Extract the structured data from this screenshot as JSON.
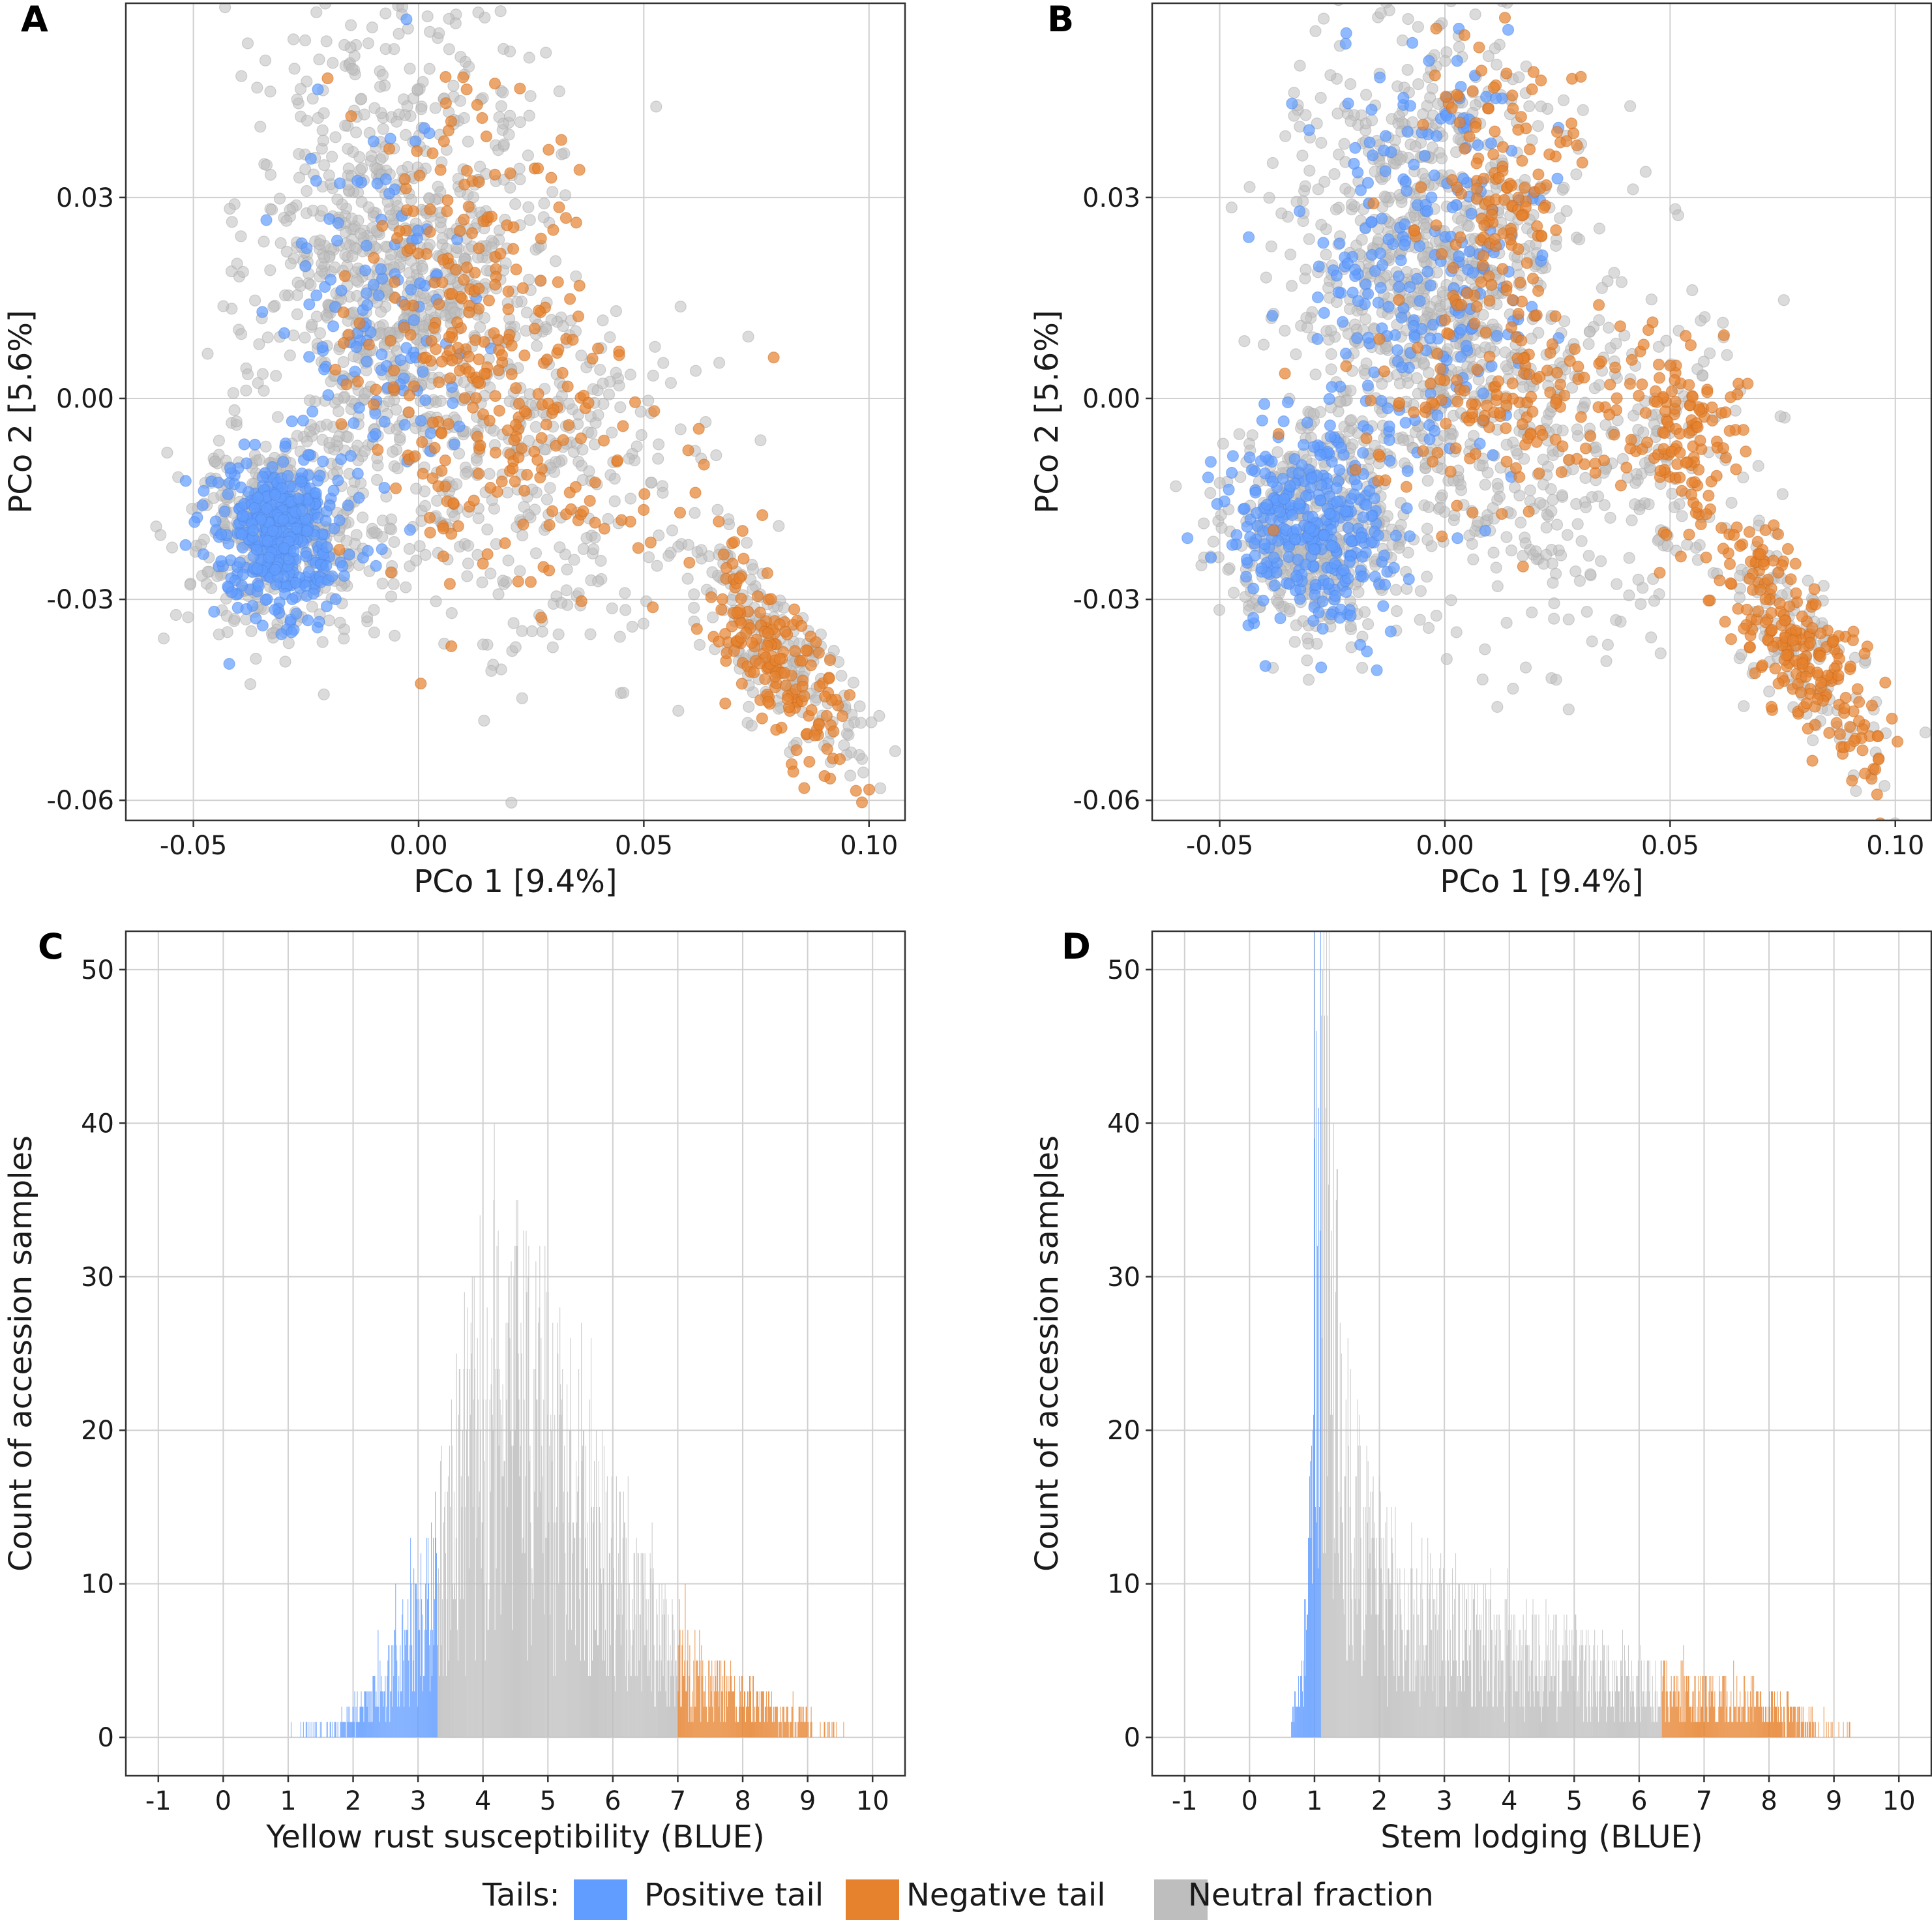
{
  "colors": {
    "positive": "#619CFF",
    "negative": "#E6822E",
    "neutral": "#BEBEBE"
  },
  "legend": {
    "title": "Tails:",
    "items": [
      "Positive tail",
      "Negative tail",
      "Neutral fraction"
    ]
  },
  "chart_data": [
    {
      "panel": "A",
      "type": "scatter",
      "xlabel": "PCo 1 [9.4%]",
      "ylabel": "PCo 2 [5.6%]",
      "xlim": [
        -0.065,
        0.108
      ],
      "ylim": [
        -0.063,
        0.059
      ],
      "xticks": [
        -0.05,
        0.0,
        0.05,
        0.1
      ],
      "xtick_labels": [
        "-0.05",
        "0.00",
        "0.05",
        "0.10"
      ],
      "yticks": [
        -0.06,
        -0.03,
        0.0,
        0.03
      ],
      "ytick_labels": [
        "-0.06",
        "-0.03",
        "0.00",
        "0.03"
      ],
      "clusters": [
        {
          "series": "neutral",
          "n": 900,
          "cx": -0.004,
          "cy": 0.02,
          "sx": 0.016,
          "sy": 0.019
        },
        {
          "series": "neutral",
          "n": 420,
          "cx": -0.03,
          "cy": -0.02,
          "sx": 0.01,
          "sy": 0.008
        },
        {
          "series": "neutral",
          "n": 320,
          "cx": 0.026,
          "cy": -0.01,
          "sx": 0.02,
          "sy": 0.014
        },
        {
          "series": "neutral",
          "n": 200,
          "cx": 0.079,
          "cy": -0.037,
          "sx": 0.011,
          "sy": 0.006,
          "slope": -0.75
        },
        {
          "series": "positive",
          "n": 400,
          "cx": -0.031,
          "cy": -0.021,
          "sx": 0.007,
          "sy": 0.006
        },
        {
          "series": "positive",
          "n": 130,
          "cx": -0.009,
          "cy": 0.01,
          "sx": 0.01,
          "sy": 0.015
        },
        {
          "series": "negative",
          "n": 190,
          "cx": 0.012,
          "cy": 0.015,
          "sx": 0.012,
          "sy": 0.016
        },
        {
          "series": "negative",
          "n": 130,
          "cx": 0.024,
          "cy": -0.01,
          "sx": 0.018,
          "sy": 0.012
        },
        {
          "series": "negative",
          "n": 170,
          "cx": 0.079,
          "cy": -0.039,
          "sx": 0.009,
          "sy": 0.006,
          "slope": -0.75
        }
      ]
    },
    {
      "panel": "B",
      "type": "scatter",
      "xlabel": "PCo 1 [9.4%]",
      "ylabel": "PCo 2 [5.6%]",
      "xlim": [
        -0.065,
        0.108
      ],
      "ylim": [
        -0.063,
        0.059
      ],
      "xticks": [
        -0.05,
        0.0,
        0.05,
        0.1
      ],
      "xtick_labels": [
        "-0.05",
        "0.00",
        "0.05",
        "0.10"
      ],
      "yticks": [
        -0.06,
        -0.03,
        0.0,
        0.03
      ],
      "ytick_labels": [
        "-0.06",
        "-0.03",
        "0.00",
        "0.03"
      ],
      "clusters": [
        {
          "series": "neutral",
          "n": 900,
          "cx": -0.004,
          "cy": 0.02,
          "sx": 0.016,
          "sy": 0.019
        },
        {
          "series": "neutral",
          "n": 420,
          "cx": -0.03,
          "cy": -0.02,
          "sx": 0.01,
          "sy": 0.008
        },
        {
          "series": "neutral",
          "n": 320,
          "cx": 0.03,
          "cy": -0.01,
          "sx": 0.02,
          "sy": 0.014
        },
        {
          "series": "neutral",
          "n": 120,
          "cx": 0.079,
          "cy": -0.037,
          "sx": 0.011,
          "sy": 0.006,
          "slope": -0.75
        },
        {
          "series": "positive",
          "n": 320,
          "cx": -0.029,
          "cy": -0.019,
          "sx": 0.009,
          "sy": 0.008
        },
        {
          "series": "positive",
          "n": 260,
          "cx": -0.004,
          "cy": 0.018,
          "sx": 0.012,
          "sy": 0.017
        },
        {
          "series": "negative",
          "n": 150,
          "cx": 0.012,
          "cy": 0.03,
          "sx": 0.009,
          "sy": 0.012
        },
        {
          "series": "negative",
          "n": 150,
          "cx": 0.015,
          "cy": -0.002,
          "sx": 0.017,
          "sy": 0.008
        },
        {
          "series": "negative",
          "n": 110,
          "cx": 0.053,
          "cy": -0.005,
          "sx": 0.006,
          "sy": 0.007
        },
        {
          "series": "negative",
          "n": 230,
          "cx": 0.078,
          "cy": -0.037,
          "sx": 0.01,
          "sy": 0.006,
          "slope": -0.75
        }
      ]
    },
    {
      "panel": "C",
      "type": "bar",
      "xlabel": "Yellow rust susceptibility (BLUE)",
      "ylabel": "Count of accession samples",
      "xlim": [
        -1.5,
        10.5
      ],
      "ylim": [
        -2.5,
        52.5
      ],
      "xticks": [
        -1,
        0,
        1,
        2,
        3,
        4,
        5,
        6,
        7,
        8,
        9,
        10
      ],
      "xtick_labels": [
        "-1",
        "0",
        "1",
        "2",
        "3",
        "4",
        "5",
        "6",
        "7",
        "8",
        "9",
        "10"
      ],
      "yticks": [
        0,
        10,
        20,
        30,
        40,
        50
      ],
      "ytick_labels": [
        "0",
        "10",
        "20",
        "30",
        "40",
        "50"
      ],
      "bin_width": 0.01,
      "x_start": 1.0,
      "x_end": 9.8,
      "positive_max": 3.3,
      "negative_min": 7.0,
      "envelope": [
        [
          1.0,
          0.5
        ],
        [
          1.8,
          1
        ],
        [
          2.2,
          2
        ],
        [
          2.6,
          4
        ],
        [
          3.0,
          7
        ],
        [
          3.3,
          10
        ],
        [
          3.6,
          15
        ],
        [
          4.0,
          20
        ],
        [
          4.5,
          21
        ],
        [
          5.0,
          18
        ],
        [
          5.5,
          14
        ],
        [
          6.0,
          10
        ],
        [
          6.5,
          7
        ],
        [
          7.0,
          5
        ],
        [
          7.5,
          3.5
        ],
        [
          8.0,
          2.5
        ],
        [
          8.5,
          1.5
        ],
        [
          9.0,
          1
        ],
        [
          9.8,
          0.3
        ]
      ]
    },
    {
      "panel": "D",
      "type": "bar",
      "xlabel": "Stem lodging (BLUE)",
      "ylabel": "Count of accession samples",
      "xlim": [
        -1.5,
        10.5
      ],
      "ylim": [
        -2.5,
        52.5
      ],
      "xticks": [
        -1,
        0,
        1,
        2,
        3,
        4,
        5,
        6,
        7,
        8,
        9,
        10
      ],
      "xtick_labels": [
        "-1",
        "0",
        "1",
        "2",
        "3",
        "4",
        "5",
        "6",
        "7",
        "8",
        "9",
        "10"
      ],
      "yticks": [
        0,
        10,
        20,
        30,
        40,
        50
      ],
      "ytick_labels": [
        "0",
        "10",
        "20",
        "30",
        "40",
        "50"
      ],
      "bin_width": 0.01,
      "x_start": 0.6,
      "x_end": 9.3,
      "positive_max": 1.1,
      "negative_min": 6.35,
      "envelope": [
        [
          0.6,
          0.5
        ],
        [
          0.8,
          3
        ],
        [
          0.9,
          7
        ],
        [
          0.95,
          15
        ],
        [
          1.0,
          28
        ],
        [
          1.05,
          36
        ],
        [
          1.15,
          38
        ],
        [
          1.22,
          33
        ],
        [
          1.3,
          25
        ],
        [
          1.45,
          17
        ],
        [
          1.6,
          13
        ],
        [
          2.0,
          10
        ],
        [
          2.5,
          8
        ],
        [
          3.0,
          7
        ],
        [
          4.0,
          5.5
        ],
        [
          5.0,
          4.5
        ],
        [
          6.0,
          3.5
        ],
        [
          6.35,
          3
        ],
        [
          7.0,
          2.5
        ],
        [
          8.0,
          2
        ],
        [
          8.5,
          1.2
        ],
        [
          9.3,
          0.3
        ]
      ]
    }
  ]
}
